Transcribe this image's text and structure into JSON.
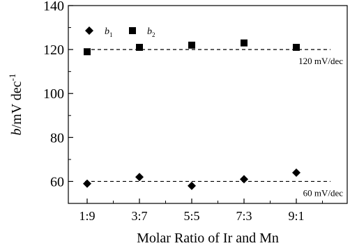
{
  "chart_data": {
    "type": "scatter",
    "title": "",
    "xlabel": "Molar Ratio of Ir and Mn",
    "ylabel": {
      "italic": "b",
      "rest": "/mV dec",
      "sup": "-1"
    },
    "categories": [
      "1:9",
      "3:7",
      "5:5",
      "7:3",
      "9:1"
    ],
    "ylim": [
      50,
      140
    ],
    "yticks": [
      60,
      80,
      100,
      120,
      140
    ],
    "grid": false,
    "legend_position": "top-left",
    "series": [
      {
        "name": "b",
        "sub": "1",
        "marker": "diamond",
        "color": "#000000",
        "values": [
          59,
          62,
          58,
          61,
          64
        ]
      },
      {
        "name": "b",
        "sub": "2",
        "marker": "square",
        "color": "#000000",
        "values": [
          119,
          121,
          122,
          123,
          121
        ]
      }
    ],
    "reference_lines": [
      {
        "y": 120,
        "label": "120 mV/dec"
      },
      {
        "y": 60,
        "label": "60 mV/dec"
      }
    ]
  }
}
